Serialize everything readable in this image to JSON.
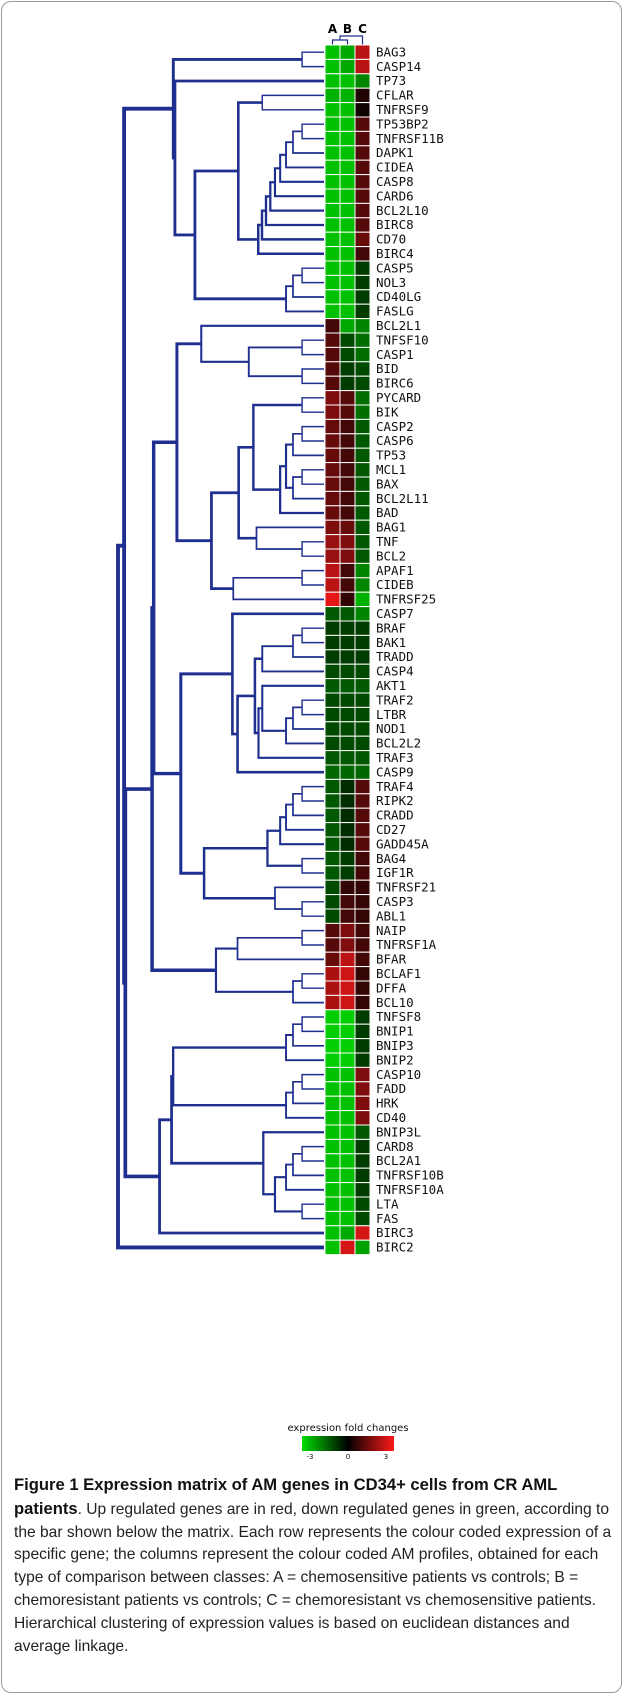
{
  "figure": {
    "column_labels": [
      "A",
      "B",
      "C"
    ],
    "legend": {
      "title": "expression fold changes",
      "ticks": [
        "-3",
        "0",
        "3"
      ],
      "colors": {
        "low": "#00dd00",
        "mid": "#000000",
        "high": "#ff1a1a"
      }
    },
    "caption": {
      "figure_number": "Figure 1",
      "title": "Expression matrix of AM genes in CD34+ cells from CR AML patients",
      "body": ". Up regulated genes are in red, down regulated genes in green, according to the bar shown below the matrix. Each row represents the colour coded expression of a specific gene; the columns represent the colour coded AM profiles, obtained for each type of comparison between classes: A = chemosensitive patients vs controls; B = chemoresistant patients vs controls; C = chemoresistant vs chemosensitive patients. Hierarchical clustering of expression values is based on euclidean distances and average linkage."
    }
  },
  "chart_data": {
    "type": "heatmap",
    "columns": [
      "A",
      "B",
      "C"
    ],
    "value_range": [
      -3,
      3
    ],
    "rows": [
      {
        "gene": "BAG3",
        "values": [
          -2.6,
          -2.3,
          2.2
        ]
      },
      {
        "gene": "CASP14",
        "values": [
          -2.6,
          -2.3,
          2.2
        ]
      },
      {
        "gene": "TP73",
        "values": [
          -2.6,
          -2.6,
          -1.8
        ]
      },
      {
        "gene": "CFLAR",
        "values": [
          -2.4,
          -2.4,
          0.4
        ]
      },
      {
        "gene": "TNFRSF9",
        "values": [
          -2.6,
          -2.6,
          0.2
        ]
      },
      {
        "gene": "TP53BP2",
        "values": [
          -2.6,
          -2.6,
          1.0
        ]
      },
      {
        "gene": "TNFRSF11B",
        "values": [
          -2.6,
          -2.6,
          1.0
        ]
      },
      {
        "gene": "DAPK1",
        "values": [
          -2.6,
          -2.6,
          1.0
        ]
      },
      {
        "gene": "CIDEA",
        "values": [
          -2.6,
          -2.6,
          1.0
        ]
      },
      {
        "gene": "CASP8",
        "values": [
          -2.6,
          -2.6,
          1.0
        ]
      },
      {
        "gene": "CARD6",
        "values": [
          -2.6,
          -2.6,
          1.0
        ]
      },
      {
        "gene": "BCL2L10",
        "values": [
          -2.6,
          -2.6,
          1.0
        ]
      },
      {
        "gene": "BIRC8",
        "values": [
          -2.6,
          -2.6,
          1.0
        ]
      },
      {
        "gene": "CD70",
        "values": [
          -2.6,
          -2.6,
          1.2
        ]
      },
      {
        "gene": "BIRC4",
        "values": [
          -2.6,
          -2.6,
          0.8
        ]
      },
      {
        "gene": "CASP5",
        "values": [
          -2.6,
          -2.6,
          -0.8
        ]
      },
      {
        "gene": "NOL3",
        "values": [
          -2.6,
          -2.6,
          -0.8
        ]
      },
      {
        "gene": "CD40LG",
        "values": [
          -2.6,
          -2.6,
          -0.8
        ]
      },
      {
        "gene": "FASLG",
        "values": [
          -2.6,
          -2.6,
          -0.8
        ]
      },
      {
        "gene": "BCL2L1",
        "values": [
          0.8,
          -2.3,
          -1.8
        ]
      },
      {
        "gene": "TNFSF10",
        "values": [
          1.0,
          -1.0,
          -1.5
        ]
      },
      {
        "gene": "CASP1",
        "values": [
          1.0,
          -1.0,
          -1.5
        ]
      },
      {
        "gene": "BID",
        "values": [
          1.0,
          -0.8,
          -1.0
        ]
      },
      {
        "gene": "BIRC6",
        "values": [
          1.0,
          -0.8,
          -1.0
        ]
      },
      {
        "gene": "PYCARD",
        "values": [
          1.5,
          1.0,
          -1.5
        ]
      },
      {
        "gene": "BIK",
        "values": [
          1.5,
          1.0,
          -1.5
        ]
      },
      {
        "gene": "CASP2",
        "values": [
          1.2,
          0.8,
          -1.2
        ]
      },
      {
        "gene": "CASP6",
        "values": [
          1.2,
          0.8,
          -1.2
        ]
      },
      {
        "gene": "TP53",
        "values": [
          1.2,
          0.8,
          -1.2
        ]
      },
      {
        "gene": "MCL1",
        "values": [
          1.2,
          0.8,
          -1.2
        ]
      },
      {
        "gene": "BAX",
        "values": [
          1.2,
          0.8,
          -1.2
        ]
      },
      {
        "gene": "BCL2L11",
        "values": [
          1.2,
          0.8,
          -1.2
        ]
      },
      {
        "gene": "BAD",
        "values": [
          1.2,
          0.8,
          -1.2
        ]
      },
      {
        "gene": "BAG1",
        "values": [
          1.5,
          1.2,
          -1.2
        ]
      },
      {
        "gene": "TNF",
        "values": [
          1.8,
          1.5,
          -1.2
        ]
      },
      {
        "gene": "BCL2",
        "values": [
          1.8,
          1.5,
          -1.2
        ]
      },
      {
        "gene": "APAF1",
        "values": [
          2.2,
          0.8,
          -1.8
        ]
      },
      {
        "gene": "CIDEB",
        "values": [
          2.2,
          0.8,
          -1.8
        ]
      },
      {
        "gene": "TNFRSF25",
        "values": [
          2.7,
          0.6,
          -2.4
        ]
      },
      {
        "gene": "CASP7",
        "values": [
          -1.2,
          -1.2,
          -1.8
        ]
      },
      {
        "gene": "BRAF",
        "values": [
          -0.8,
          -0.8,
          -0.8
        ]
      },
      {
        "gene": "BAK1",
        "values": [
          -0.8,
          -0.8,
          -0.8
        ]
      },
      {
        "gene": "TRADD",
        "values": [
          -0.8,
          -0.8,
          -0.8
        ]
      },
      {
        "gene": "CASP4",
        "values": [
          -1.0,
          -1.0,
          -1.0
        ]
      },
      {
        "gene": "AKT1",
        "values": [
          -1.2,
          -1.2,
          -1.2
        ]
      },
      {
        "gene": "TRAF2",
        "values": [
          -1.0,
          -1.0,
          -1.0
        ]
      },
      {
        "gene": "LTBR",
        "values": [
          -1.0,
          -1.0,
          -1.0
        ]
      },
      {
        "gene": "NOD1",
        "values": [
          -1.0,
          -1.0,
          -1.0
        ]
      },
      {
        "gene": "BCL2L2",
        "values": [
          -1.0,
          -1.0,
          -1.0
        ]
      },
      {
        "gene": "TRAF3",
        "values": [
          -1.2,
          -1.2,
          -1.2
        ]
      },
      {
        "gene": "CASP9",
        "values": [
          -1.4,
          -1.4,
          -1.4
        ]
      },
      {
        "gene": "TRAF4",
        "values": [
          -1.2,
          -0.6,
          1.0
        ]
      },
      {
        "gene": "RIPK2",
        "values": [
          -1.2,
          -0.6,
          1.0
        ]
      },
      {
        "gene": "CRADD",
        "values": [
          -1.2,
          -0.6,
          1.0
        ]
      },
      {
        "gene": "CD27",
        "values": [
          -1.2,
          -0.6,
          1.0
        ]
      },
      {
        "gene": "GADD45A",
        "values": [
          -1.2,
          -0.6,
          1.0
        ]
      },
      {
        "gene": "BAG4",
        "values": [
          -1.2,
          -0.8,
          0.8
        ]
      },
      {
        "gene": "IGF1R",
        "values": [
          -1.2,
          -0.8,
          0.8
        ]
      },
      {
        "gene": "TNFRSF21",
        "values": [
          -1.0,
          0.6,
          0.6
        ]
      },
      {
        "gene": "CASP3",
        "values": [
          -1.0,
          0.8,
          0.6
        ]
      },
      {
        "gene": "ABL1",
        "values": [
          -1.0,
          0.8,
          0.6
        ]
      },
      {
        "gene": "NAIP",
        "values": [
          1.0,
          1.5,
          0.8
        ]
      },
      {
        "gene": "TNFRSF1A",
        "values": [
          1.0,
          1.5,
          0.8
        ]
      },
      {
        "gene": "BFAR",
        "values": [
          1.2,
          2.2,
          0.8
        ]
      },
      {
        "gene": "BCLAF1",
        "values": [
          2.0,
          2.4,
          0.6
        ]
      },
      {
        "gene": "DFFA",
        "values": [
          2.0,
          2.4,
          0.6
        ]
      },
      {
        "gene": "BCL10",
        "values": [
          2.0,
          2.4,
          0.6
        ]
      },
      {
        "gene": "TNFSF8",
        "values": [
          -2.8,
          -2.8,
          -0.8
        ]
      },
      {
        "gene": "BNIP1",
        "values": [
          -2.8,
          -2.8,
          -0.8
        ]
      },
      {
        "gene": "BNIP3",
        "values": [
          -2.8,
          -2.8,
          -0.8
        ]
      },
      {
        "gene": "BNIP2",
        "values": [
          -2.8,
          -2.8,
          -0.8
        ]
      },
      {
        "gene": "CASP10",
        "values": [
          -2.6,
          -2.6,
          1.5
        ]
      },
      {
        "gene": "FADD",
        "values": [
          -2.6,
          -2.6,
          1.5
        ]
      },
      {
        "gene": "HRK",
        "values": [
          -2.6,
          -2.6,
          1.5
        ]
      },
      {
        "gene": "CD40",
        "values": [
          -2.6,
          -2.6,
          1.5
        ]
      },
      {
        "gene": "BNIP3L",
        "values": [
          -2.6,
          -2.6,
          -1.2
        ]
      },
      {
        "gene": "CARD8",
        "values": [
          -2.6,
          -2.6,
          -0.8
        ]
      },
      {
        "gene": "BCL2A1",
        "values": [
          -2.6,
          -2.6,
          -0.8
        ]
      },
      {
        "gene": "TNFRSF10B",
        "values": [
          -2.6,
          -2.6,
          -0.8
        ]
      },
      {
        "gene": "TNFRSF10A",
        "values": [
          -2.6,
          -2.6,
          -0.8
        ]
      },
      {
        "gene": "LTA",
        "values": [
          -2.6,
          -2.6,
          -1.0
        ]
      },
      {
        "gene": "FAS",
        "values": [
          -2.6,
          -2.6,
          -1.0
        ]
      },
      {
        "gene": "BIRC3",
        "values": [
          -2.6,
          -2.3,
          2.5
        ]
      },
      {
        "gene": "BIRC2",
        "values": [
          -2.6,
          2.5,
          -2.2
        ]
      }
    ]
  }
}
